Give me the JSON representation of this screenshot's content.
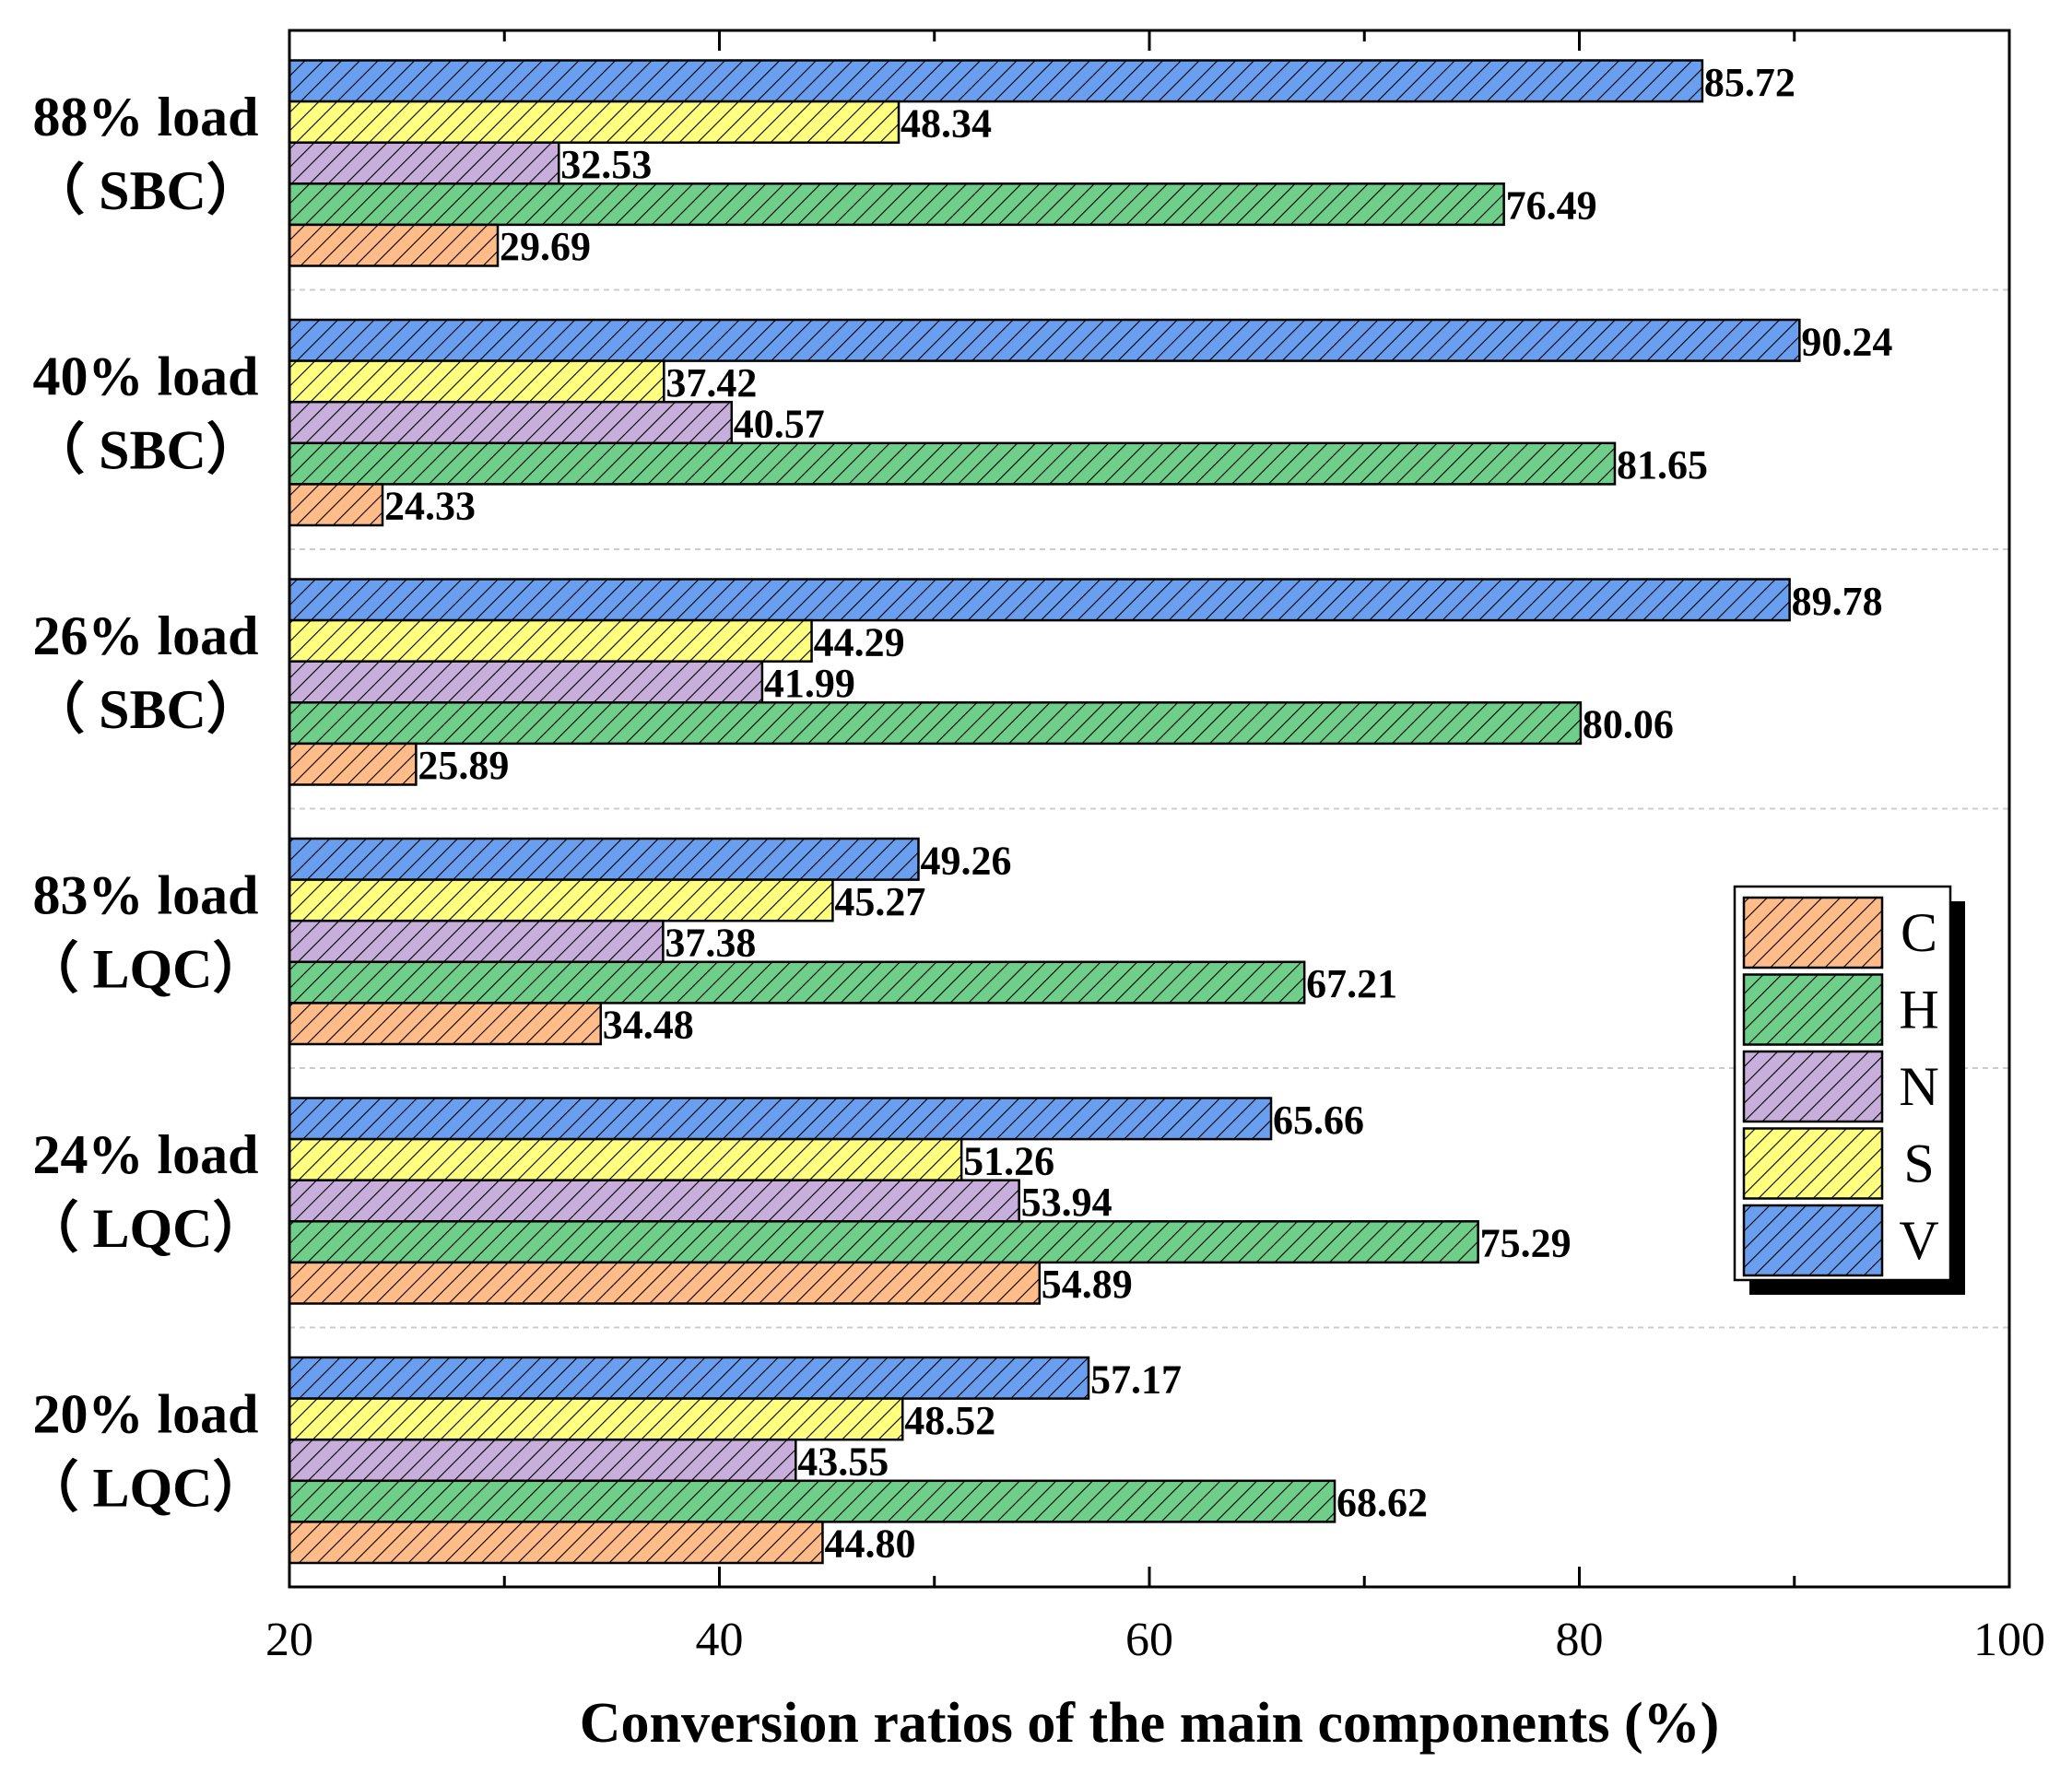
{
  "chart_data": {
    "type": "bar",
    "orientation": "horizontal",
    "title": "",
    "xlabel": "Conversion ratios of the main components (%)",
    "ylabel": "",
    "xlim": [
      20,
      100
    ],
    "xticks": [
      "20",
      "40",
      "60",
      "80",
      "100"
    ],
    "categories": [
      {
        "line1": "88% load",
        "line2": "（ SBC）"
      },
      {
        "line1": "40% load",
        "line2": "（ SBC）"
      },
      {
        "line1": "26% load",
        "line2": "（ SBC）"
      },
      {
        "line1": "83% load",
        "line2": "（ LQC）"
      },
      {
        "line1": "24% load",
        "line2": "（ LQC）"
      },
      {
        "line1": "20% load",
        "line2": "（ LQC）"
      }
    ],
    "series": [
      {
        "name": "V",
        "color": "#6a9ff0",
        "values": [
          85.72,
          90.24,
          89.78,
          49.26,
          65.66,
          57.17
        ],
        "labels": [
          "85.72",
          "90.24",
          "89.78",
          "49.26",
          "65.66",
          "57.17"
        ]
      },
      {
        "name": "S",
        "color": "#ffff80",
        "values": [
          48.34,
          37.42,
          44.29,
          45.27,
          51.26,
          48.52
        ],
        "labels": [
          "48.34",
          "37.42",
          "44.29",
          "45.27",
          "51.26",
          "48.52"
        ]
      },
      {
        "name": "N",
        "color": "#c7aedb",
        "values": [
          32.53,
          40.57,
          41.99,
          37.38,
          53.94,
          43.55
        ],
        "labels": [
          "32.53",
          "40.57",
          "41.99",
          "37.38",
          "53.94",
          "43.55"
        ]
      },
      {
        "name": "H",
        "color": "#6fcf8a",
        "values": [
          76.49,
          81.65,
          80.06,
          67.21,
          75.29,
          68.62
        ],
        "labels": [
          "76.49",
          "81.65",
          "80.06",
          "67.21",
          "75.29",
          "68.62"
        ]
      },
      {
        "name": "C",
        "color": "#ffbb88",
        "values": [
          29.69,
          24.33,
          25.89,
          34.48,
          54.89,
          44.8
        ],
        "labels": [
          "29.69",
          "24.33",
          "25.89",
          "34.48",
          "54.89",
          "44.80"
        ]
      }
    ],
    "legend": {
      "position": "right",
      "order": [
        "C",
        "H",
        "N",
        "S",
        "V"
      ]
    },
    "grid": false
  }
}
